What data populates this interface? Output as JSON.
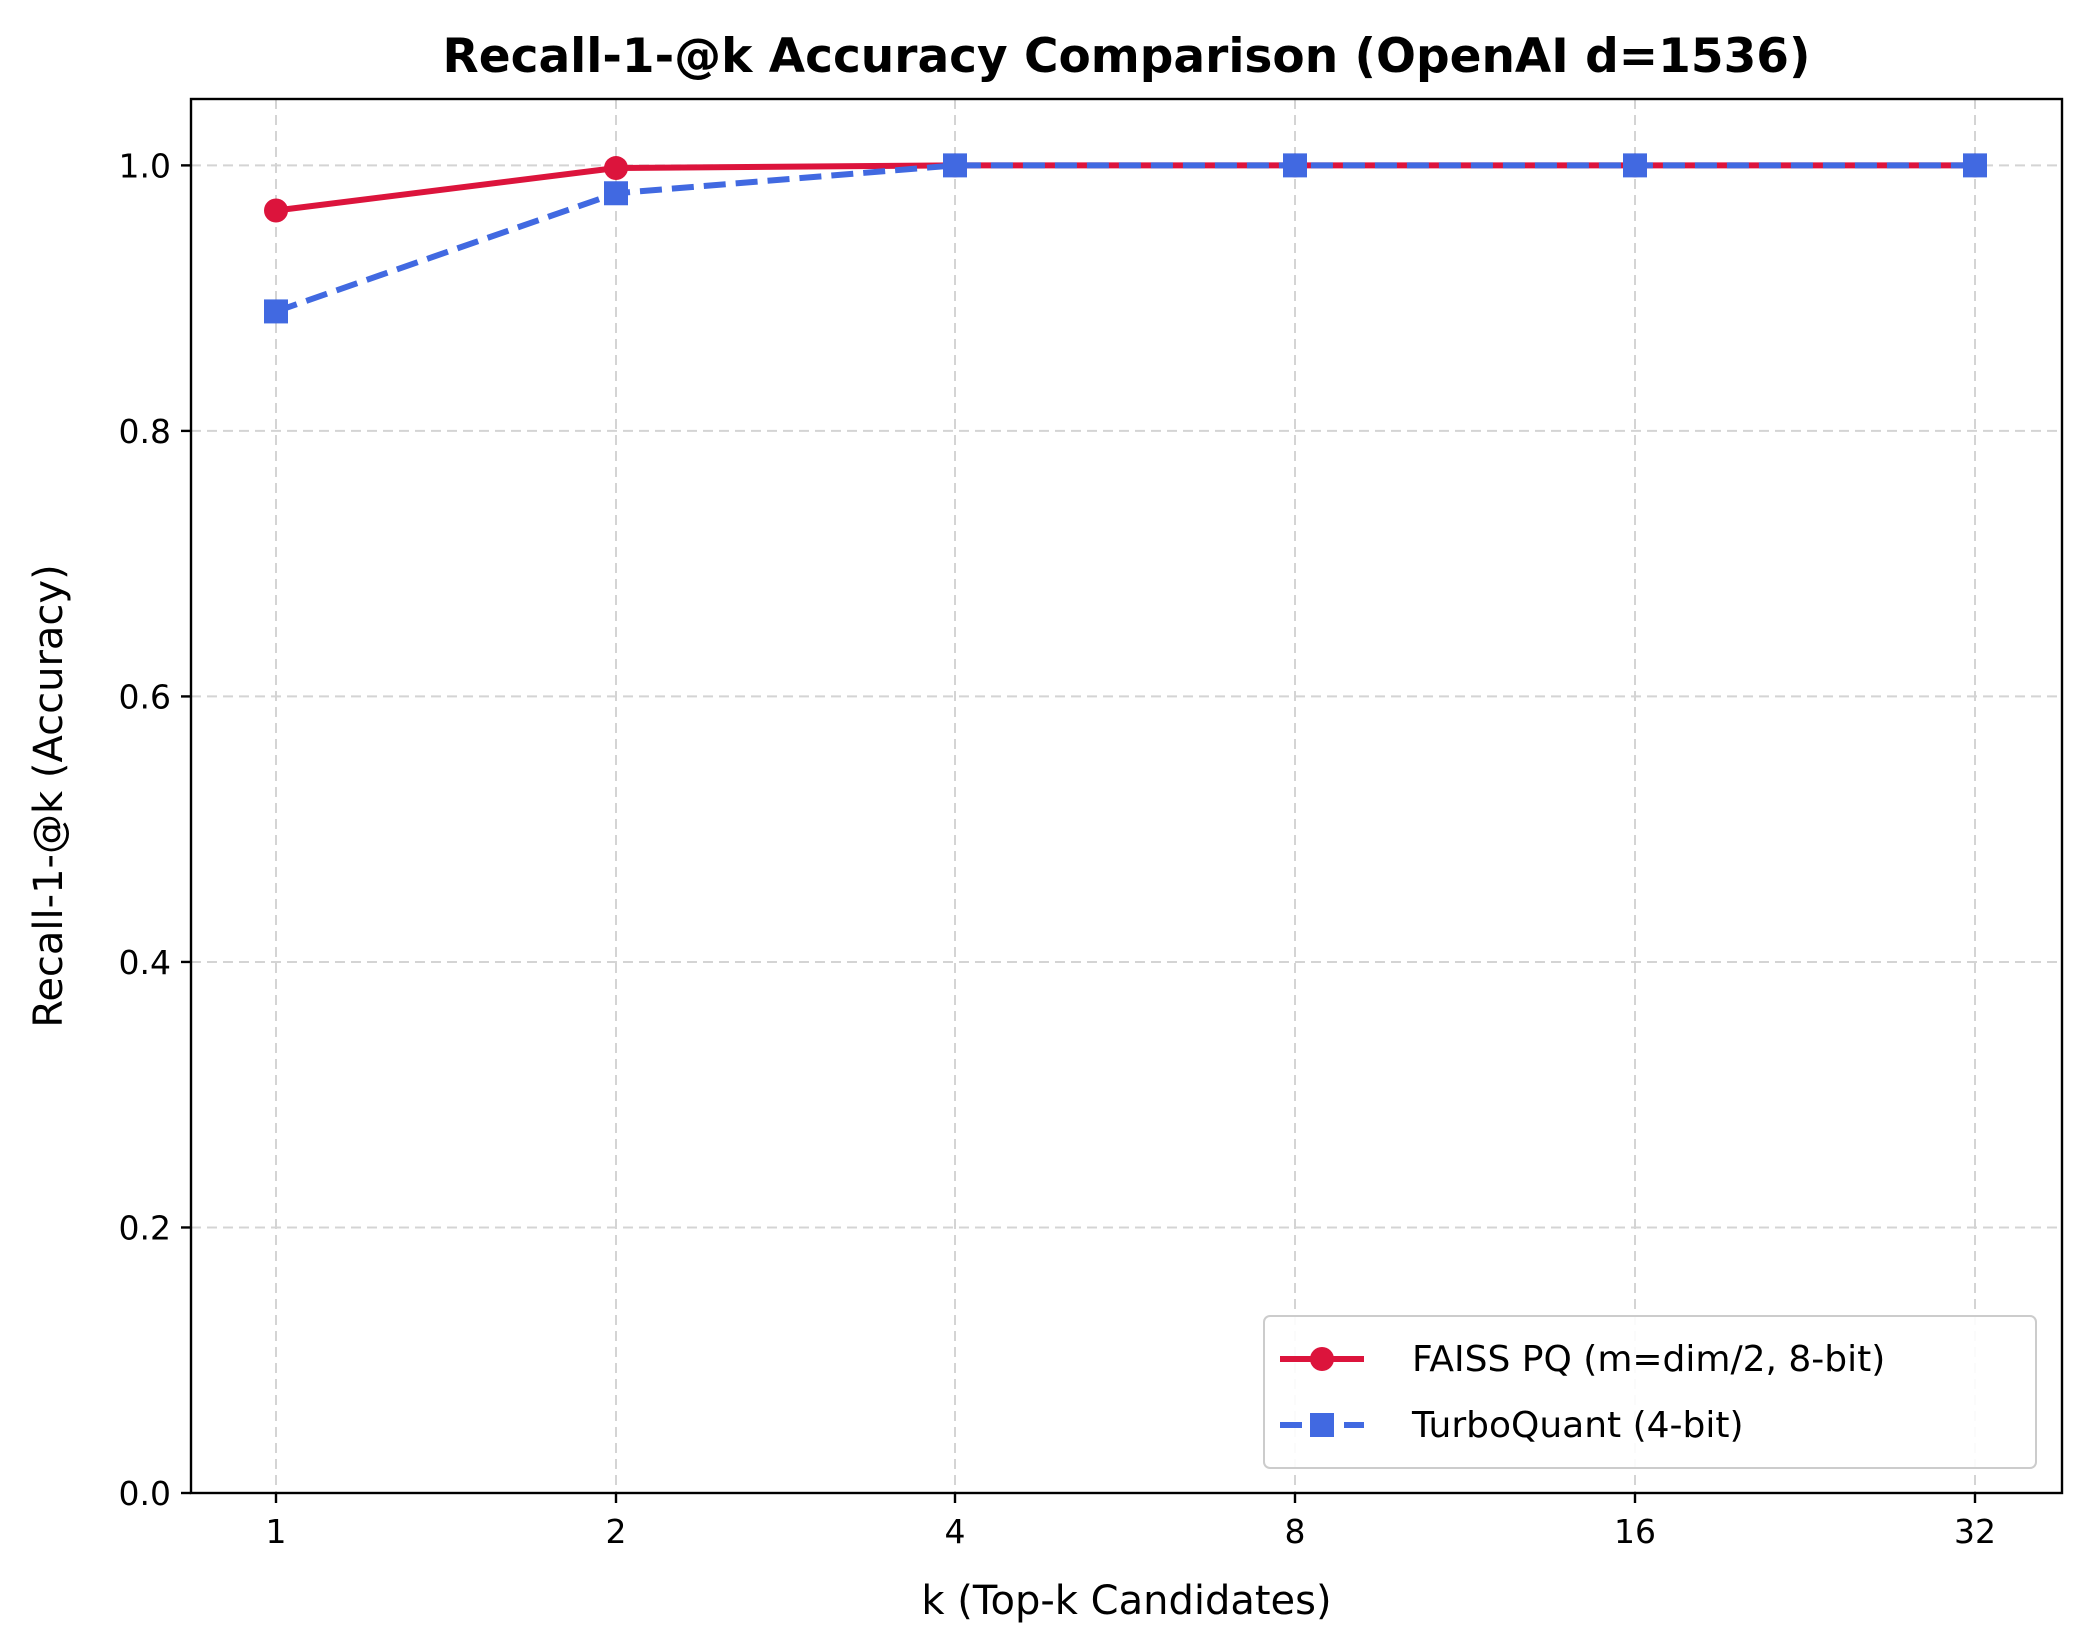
{
  "chart_data": {
    "type": "line",
    "title": "Recall-1-@k Accuracy Comparison (OpenAI d=1536)",
    "xlabel": "k (Top-k Candidates)",
    "ylabel": "Recall-1-@k (Accuracy)",
    "x": [
      1,
      2,
      4,
      8,
      16,
      32
    ],
    "x_tick_labels": [
      "1",
      "2",
      "4",
      "8",
      "16",
      "32"
    ],
    "x_scale": "log2",
    "ylim": [
      0.0,
      1.05
    ],
    "y_ticks": [
      0.0,
      0.2,
      0.4,
      0.6,
      0.8,
      1.0
    ],
    "y_tick_labels": [
      "0.0",
      "0.2",
      "0.4",
      "0.6",
      "0.8",
      "1.0"
    ],
    "grid": true,
    "legend_position": "lower-right",
    "series": [
      {
        "name": "FAISS PQ (m=dim/2, 8-bit)",
        "values": [
          0.966,
          0.998,
          1.0,
          1.0,
          1.0,
          1.0
        ],
        "color": "#dc143c",
        "line_style": "solid",
        "marker": "circle"
      },
      {
        "name": "TurboQuant (4-bit)",
        "values": [
          0.89,
          0.979,
          1.0,
          1.0,
          1.0,
          1.0
        ],
        "color": "#4169e1",
        "line_style": "dashed",
        "marker": "square"
      }
    ]
  }
}
